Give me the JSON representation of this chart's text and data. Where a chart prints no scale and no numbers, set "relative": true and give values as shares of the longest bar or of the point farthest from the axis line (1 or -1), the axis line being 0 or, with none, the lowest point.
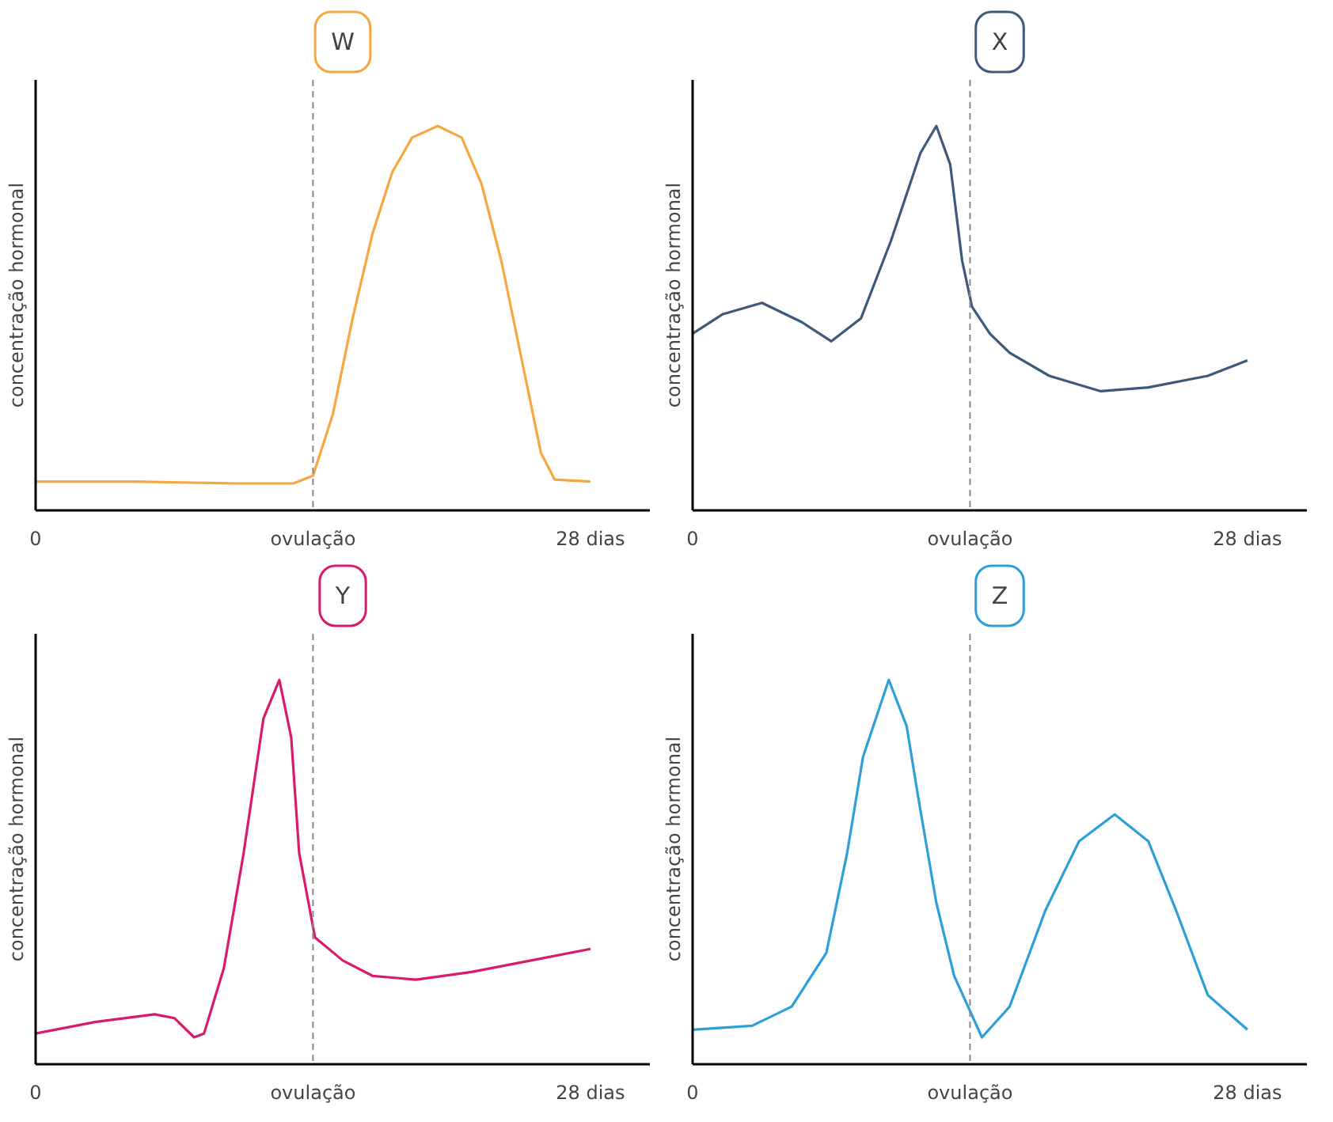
{
  "chart_data": [
    {
      "type": "line",
      "title": "W",
      "ylabel": "concentração hormonal",
      "relative": true,
      "xlim": [
        0,
        31
      ],
      "xticks": [
        {
          "value": 0,
          "label": "0"
        },
        {
          "value": 14,
          "label": "ovulação"
        },
        {
          "value": 28,
          "label": "28 dias"
        }
      ],
      "grid": false,
      "line_style": "solid",
      "series": [
        {
          "color": "#f5a742",
          "x": [
            0,
            5,
            10,
            13,
            14,
            15,
            16,
            17,
            18,
            19,
            20.3,
            21.5,
            22.5,
            23.5,
            24.5,
            25.5,
            26.2,
            28
          ],
          "values": [
            0.075,
            0.075,
            0.07,
            0.07,
            0.09,
            0.25,
            0.5,
            0.72,
            0.88,
            0.97,
            1,
            0.97,
            0.85,
            0.65,
            0.4,
            0.15,
            0.08,
            0.075
          ]
        }
      ],
      "ref_lines": [
        {
          "axis": "x",
          "value": 14,
          "color": "#888888",
          "line_style": "dashed"
        }
      ]
    },
    {
      "type": "line",
      "title": "X",
      "ylabel": "concentração hormonal",
      "relative": true,
      "xlim": [
        0,
        31
      ],
      "xticks": [
        {
          "value": 0,
          "label": "0"
        },
        {
          "value": 14,
          "label": "ovulação"
        },
        {
          "value": 28,
          "label": "28 dias"
        }
      ],
      "grid": false,
      "line_style": "solid",
      "series": [
        {
          "color": "#3d5a7a",
          "x": [
            0,
            1.5,
            3.5,
            5.5,
            7,
            8.5,
            10,
            11.5,
            12.3,
            13,
            13.6,
            14.1,
            15,
            16,
            18,
            20.6,
            23,
            26,
            28
          ],
          "values": [
            0.46,
            0.51,
            0.54,
            0.49,
            0.44,
            0.5,
            0.7,
            0.93,
            1,
            0.9,
            0.65,
            0.53,
            0.46,
            0.41,
            0.35,
            0.31,
            0.32,
            0.35,
            0.39
          ]
        }
      ],
      "ref_lines": [
        {
          "axis": "x",
          "value": 14,
          "color": "#888888",
          "line_style": "dashed"
        }
      ]
    },
    {
      "type": "line",
      "title": "Y",
      "ylabel": "concentração hormonal",
      "relative": true,
      "xlim": [
        0,
        31
      ],
      "xticks": [
        {
          "value": 0,
          "label": "0"
        },
        {
          "value": 14,
          "label": "ovulação"
        },
        {
          "value": 28,
          "label": "28 dias"
        }
      ],
      "grid": false,
      "line_style": "solid",
      "series": [
        {
          "color": "#d81b6a",
          "x": [
            0,
            3,
            6,
            7,
            8,
            8.5,
            9.5,
            10.5,
            11.5,
            12.3,
            12.9,
            13.3,
            14.1,
            15.5,
            17,
            19.2,
            22,
            25,
            28
          ],
          "values": [
            0.08,
            0.11,
            0.13,
            0.12,
            0.07,
            0.08,
            0.25,
            0.55,
            0.9,
            1,
            0.85,
            0.55,
            0.33,
            0.27,
            0.23,
            0.22,
            0.24,
            0.27,
            0.3
          ]
        }
      ],
      "ref_lines": [
        {
          "axis": "x",
          "value": 14,
          "color": "#888888",
          "line_style": "dashed"
        }
      ]
    },
    {
      "type": "line",
      "title": "Z",
      "ylabel": "concentração hormonal",
      "relative": true,
      "xlim": [
        0,
        31
      ],
      "xticks": [
        {
          "value": 0,
          "label": "0"
        },
        {
          "value": 14,
          "label": "ovulação"
        },
        {
          "value": 28,
          "label": "28 dias"
        }
      ],
      "grid": false,
      "line_style": "solid",
      "series": [
        {
          "color": "#2e9fd8",
          "x": [
            0,
            3,
            5,
            6.75,
            7.8,
            8.6,
            9.9,
            10.8,
            11.4,
            12.3,
            13.2,
            14.6,
            16,
            17.8,
            19.5,
            21.3,
            23,
            24.4,
            26,
            28
          ],
          "values": [
            0.09,
            0.1,
            0.15,
            0.29,
            0.55,
            0.8,
            1,
            0.88,
            0.69,
            0.42,
            0.23,
            0.07,
            0.15,
            0.4,
            0.58,
            0.65,
            0.58,
            0.4,
            0.18,
            0.09
          ]
        }
      ],
      "ref_lines": [
        {
          "axis": "x",
          "value": 14,
          "color": "#888888",
          "line_style": "dashed"
        }
      ]
    }
  ]
}
